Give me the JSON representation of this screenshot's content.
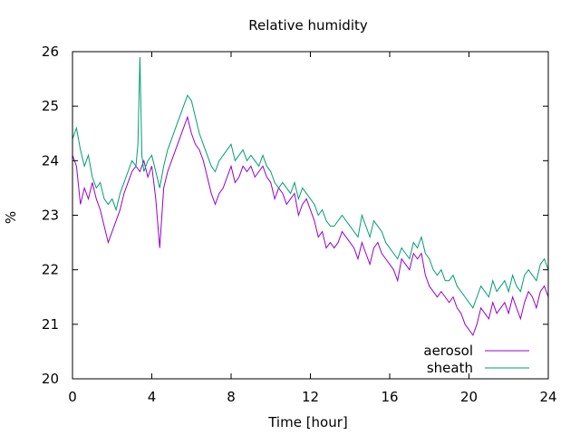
{
  "chart_data": {
    "type": "line",
    "title": "Relative humidity",
    "xlabel": "Time [hour]",
    "ylabel": "%",
    "xlim": [
      0,
      24
    ],
    "ylim": [
      20,
      26
    ],
    "xticks": [
      0,
      4,
      8,
      12,
      16,
      20,
      24
    ],
    "yticks": [
      20,
      21,
      22,
      23,
      24,
      25,
      26
    ],
    "grid": false,
    "legend_position": "bottom-right",
    "series": [
      {
        "name": "aerosol",
        "color": "#9400d3",
        "points": [
          [
            0.0,
            24.1
          ],
          [
            0.2,
            23.9
          ],
          [
            0.4,
            23.2
          ],
          [
            0.6,
            23.5
          ],
          [
            0.8,
            23.3
          ],
          [
            1.0,
            23.6
          ],
          [
            1.2,
            23.3
          ],
          [
            1.4,
            23.1
          ],
          [
            1.6,
            22.8
          ],
          [
            1.8,
            22.5
          ],
          [
            2.0,
            22.7
          ],
          [
            2.2,
            22.9
          ],
          [
            2.4,
            23.1
          ],
          [
            2.6,
            23.4
          ],
          [
            2.8,
            23.6
          ],
          [
            3.0,
            23.8
          ],
          [
            3.2,
            23.9
          ],
          [
            3.4,
            23.8
          ],
          [
            3.6,
            24.0
          ],
          [
            3.8,
            23.7
          ],
          [
            4.0,
            23.9
          ],
          [
            4.2,
            23.3
          ],
          [
            4.4,
            22.4
          ],
          [
            4.6,
            23.5
          ],
          [
            4.8,
            23.8
          ],
          [
            5.0,
            24.0
          ],
          [
            5.2,
            24.2
          ],
          [
            5.4,
            24.4
          ],
          [
            5.6,
            24.6
          ],
          [
            5.8,
            24.8
          ],
          [
            6.0,
            24.5
          ],
          [
            6.2,
            24.3
          ],
          [
            6.4,
            24.2
          ],
          [
            6.6,
            24.0
          ],
          [
            6.8,
            23.7
          ],
          [
            7.0,
            23.4
          ],
          [
            7.2,
            23.2
          ],
          [
            7.4,
            23.4
          ],
          [
            7.6,
            23.5
          ],
          [
            7.8,
            23.7
          ],
          [
            8.0,
            23.9
          ],
          [
            8.2,
            23.6
          ],
          [
            8.4,
            23.7
          ],
          [
            8.6,
            23.9
          ],
          [
            8.8,
            23.8
          ],
          [
            9.0,
            23.9
          ],
          [
            9.2,
            23.7
          ],
          [
            9.4,
            23.8
          ],
          [
            9.6,
            23.9
          ],
          [
            9.8,
            23.7
          ],
          [
            10.0,
            23.6
          ],
          [
            10.2,
            23.3
          ],
          [
            10.4,
            23.5
          ],
          [
            10.6,
            23.4
          ],
          [
            10.8,
            23.2
          ],
          [
            11.0,
            23.3
          ],
          [
            11.2,
            23.4
          ],
          [
            11.4,
            23.0
          ],
          [
            11.6,
            23.2
          ],
          [
            11.8,
            23.3
          ],
          [
            12.0,
            23.1
          ],
          [
            12.2,
            22.9
          ],
          [
            12.4,
            22.6
          ],
          [
            12.6,
            22.7
          ],
          [
            12.8,
            22.4
          ],
          [
            13.0,
            22.5
          ],
          [
            13.2,
            22.4
          ],
          [
            13.4,
            22.5
          ],
          [
            13.6,
            22.7
          ],
          [
            13.8,
            22.6
          ],
          [
            14.0,
            22.5
          ],
          [
            14.2,
            22.4
          ],
          [
            14.4,
            22.2
          ],
          [
            14.6,
            22.5
          ],
          [
            14.8,
            22.3
          ],
          [
            15.0,
            22.1
          ],
          [
            15.2,
            22.4
          ],
          [
            15.4,
            22.5
          ],
          [
            15.6,
            22.3
          ],
          [
            15.8,
            22.2
          ],
          [
            16.0,
            22.1
          ],
          [
            16.2,
            22.0
          ],
          [
            16.4,
            21.8
          ],
          [
            16.6,
            22.2
          ],
          [
            16.8,
            22.1
          ],
          [
            17.0,
            22.0
          ],
          [
            17.2,
            22.3
          ],
          [
            17.4,
            22.2
          ],
          [
            17.6,
            22.3
          ],
          [
            17.8,
            21.9
          ],
          [
            18.0,
            21.7
          ],
          [
            18.2,
            21.6
          ],
          [
            18.4,
            21.5
          ],
          [
            18.6,
            21.6
          ],
          [
            18.8,
            21.5
          ],
          [
            19.0,
            21.4
          ],
          [
            19.2,
            21.5
          ],
          [
            19.4,
            21.3
          ],
          [
            19.6,
            21.2
          ],
          [
            19.8,
            21.0
          ],
          [
            20.0,
            20.9
          ],
          [
            20.2,
            20.8
          ],
          [
            20.4,
            21.0
          ],
          [
            20.6,
            21.3
          ],
          [
            20.8,
            21.2
          ],
          [
            21.0,
            21.1
          ],
          [
            21.2,
            21.4
          ],
          [
            21.4,
            21.2
          ],
          [
            21.6,
            21.3
          ],
          [
            21.8,
            21.4
          ],
          [
            22.0,
            21.2
          ],
          [
            22.2,
            21.5
          ],
          [
            22.4,
            21.3
          ],
          [
            22.6,
            21.1
          ],
          [
            22.8,
            21.4
          ],
          [
            23.0,
            21.6
          ],
          [
            23.2,
            21.5
          ],
          [
            23.4,
            21.3
          ],
          [
            23.6,
            21.6
          ],
          [
            23.8,
            21.7
          ],
          [
            24.0,
            21.5
          ]
        ]
      },
      {
        "name": "sheath",
        "color": "#009e73",
        "points": [
          [
            0.0,
            24.4
          ],
          [
            0.2,
            24.6
          ],
          [
            0.4,
            24.2
          ],
          [
            0.6,
            23.9
          ],
          [
            0.8,
            24.1
          ],
          [
            1.0,
            23.7
          ],
          [
            1.2,
            23.5
          ],
          [
            1.4,
            23.6
          ],
          [
            1.6,
            23.3
          ],
          [
            1.8,
            23.2
          ],
          [
            2.0,
            23.3
          ],
          [
            2.2,
            23.1
          ],
          [
            2.4,
            23.4
          ],
          [
            2.6,
            23.6
          ],
          [
            2.8,
            23.8
          ],
          [
            3.0,
            24.0
          ],
          [
            3.2,
            23.9
          ],
          [
            3.3,
            24.3
          ],
          [
            3.4,
            25.9
          ],
          [
            3.5,
            24.1
          ],
          [
            3.6,
            23.8
          ],
          [
            3.8,
            24.0
          ],
          [
            4.0,
            24.1
          ],
          [
            4.2,
            23.8
          ],
          [
            4.4,
            23.5
          ],
          [
            4.6,
            23.9
          ],
          [
            4.8,
            24.2
          ],
          [
            5.0,
            24.4
          ],
          [
            5.2,
            24.6
          ],
          [
            5.4,
            24.8
          ],
          [
            5.6,
            25.0
          ],
          [
            5.8,
            25.2
          ],
          [
            6.0,
            25.1
          ],
          [
            6.2,
            24.8
          ],
          [
            6.4,
            24.5
          ],
          [
            6.6,
            24.3
          ],
          [
            6.8,
            24.1
          ],
          [
            7.0,
            23.9
          ],
          [
            7.2,
            23.8
          ],
          [
            7.4,
            24.0
          ],
          [
            7.6,
            24.1
          ],
          [
            7.8,
            24.2
          ],
          [
            8.0,
            24.3
          ],
          [
            8.2,
            24.0
          ],
          [
            8.4,
            24.1
          ],
          [
            8.6,
            24.2
          ],
          [
            8.8,
            24.0
          ],
          [
            9.0,
            24.1
          ],
          [
            9.2,
            24.0
          ],
          [
            9.4,
            23.9
          ],
          [
            9.6,
            24.1
          ],
          [
            9.8,
            23.9
          ],
          [
            10.0,
            23.8
          ],
          [
            10.2,
            23.6
          ],
          [
            10.4,
            23.5
          ],
          [
            10.6,
            23.6
          ],
          [
            10.8,
            23.5
          ],
          [
            11.0,
            23.4
          ],
          [
            11.2,
            23.6
          ],
          [
            11.4,
            23.3
          ],
          [
            11.6,
            23.5
          ],
          [
            11.8,
            23.4
          ],
          [
            12.0,
            23.3
          ],
          [
            12.2,
            23.2
          ],
          [
            12.4,
            23.0
          ],
          [
            12.6,
            23.1
          ],
          [
            12.8,
            22.9
          ],
          [
            13.0,
            22.8
          ],
          [
            13.2,
            22.8
          ],
          [
            13.4,
            22.9
          ],
          [
            13.6,
            23.0
          ],
          [
            13.8,
            22.9
          ],
          [
            14.0,
            22.8
          ],
          [
            14.2,
            22.7
          ],
          [
            14.4,
            22.6
          ],
          [
            14.6,
            23.0
          ],
          [
            14.8,
            22.8
          ],
          [
            15.0,
            22.6
          ],
          [
            15.2,
            22.9
          ],
          [
            15.4,
            22.8
          ],
          [
            15.6,
            22.7
          ],
          [
            15.8,
            22.5
          ],
          [
            16.0,
            22.4
          ],
          [
            16.2,
            22.3
          ],
          [
            16.4,
            22.2
          ],
          [
            16.6,
            22.4
          ],
          [
            16.8,
            22.3
          ],
          [
            17.0,
            22.2
          ],
          [
            17.2,
            22.5
          ],
          [
            17.4,
            22.4
          ],
          [
            17.6,
            22.6
          ],
          [
            17.8,
            22.3
          ],
          [
            18.0,
            22.2
          ],
          [
            18.2,
            22.0
          ],
          [
            18.4,
            21.9
          ],
          [
            18.6,
            22.0
          ],
          [
            18.8,
            21.8
          ],
          [
            19.0,
            21.8
          ],
          [
            19.2,
            21.9
          ],
          [
            19.4,
            21.7
          ],
          [
            19.6,
            21.6
          ],
          [
            19.8,
            21.5
          ],
          [
            20.0,
            21.4
          ],
          [
            20.2,
            21.3
          ],
          [
            20.4,
            21.5
          ],
          [
            20.6,
            21.7
          ],
          [
            20.8,
            21.6
          ],
          [
            21.0,
            21.5
          ],
          [
            21.2,
            21.8
          ],
          [
            21.4,
            21.6
          ],
          [
            21.6,
            21.7
          ],
          [
            21.8,
            21.8
          ],
          [
            22.0,
            21.6
          ],
          [
            22.2,
            21.9
          ],
          [
            22.4,
            21.7
          ],
          [
            22.6,
            21.6
          ],
          [
            22.8,
            21.9
          ],
          [
            23.0,
            22.0
          ],
          [
            23.2,
            21.9
          ],
          [
            23.4,
            21.8
          ],
          [
            23.6,
            22.1
          ],
          [
            23.8,
            22.2
          ],
          [
            24.0,
            22.0
          ]
        ]
      }
    ]
  }
}
